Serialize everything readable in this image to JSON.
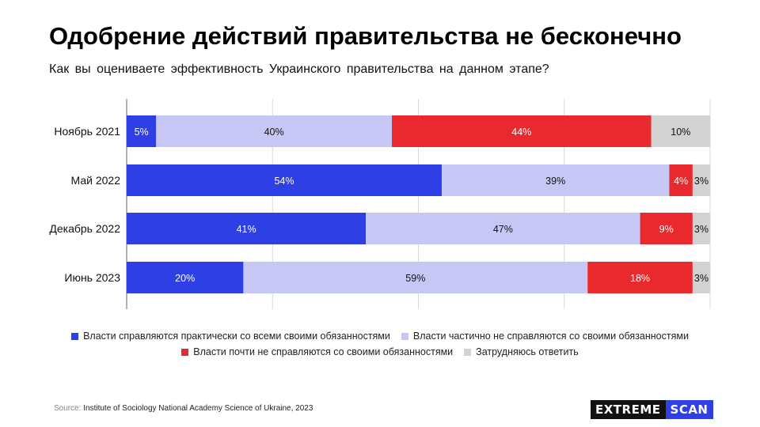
{
  "header": {
    "title": "Одобрение действий правительства не бесконечно",
    "subtitle": "Как вы оцениваете эффективность Украинского правительства на данном этапе?"
  },
  "chart_data": {
    "type": "bar",
    "orientation": "horizontal",
    "stacked": true,
    "categories": [
      "Ноябрь 2021",
      "Май 2022",
      "Декабрь 2022",
      "Июнь 2023"
    ],
    "series": [
      {
        "name": "Власти справляются практически со всеми своими обязанностями",
        "values": [
          5,
          54,
          41,
          20
        ],
        "color": "#2f3fe6",
        "label_color": "#ffffff"
      },
      {
        "name": "Власти частично не справляются со своими обязанностями",
        "values": [
          40,
          39,
          47,
          59
        ],
        "color": "#c7c7f6",
        "label_color": "#111111"
      },
      {
        "name": "Власти почти не справляются со своими обязанностями",
        "values": [
          44,
          4,
          9,
          18
        ],
        "color": "#e8292e",
        "label_color": "#ffffff"
      },
      {
        "name": "Затрудняюсь ответить",
        "values": [
          10,
          3,
          3,
          3
        ],
        "color": "#d2d2d2",
        "label_color": "#111111"
      }
    ],
    "value_suffix": "%",
    "grid": true,
    "legend_position": "bottom"
  },
  "source": {
    "label": "Source:",
    "text": "Institute of Sociology National Academy Science of Ukraine, 2023"
  },
  "logo": {
    "part1": "EXTREME",
    "part2": "SCAN"
  }
}
